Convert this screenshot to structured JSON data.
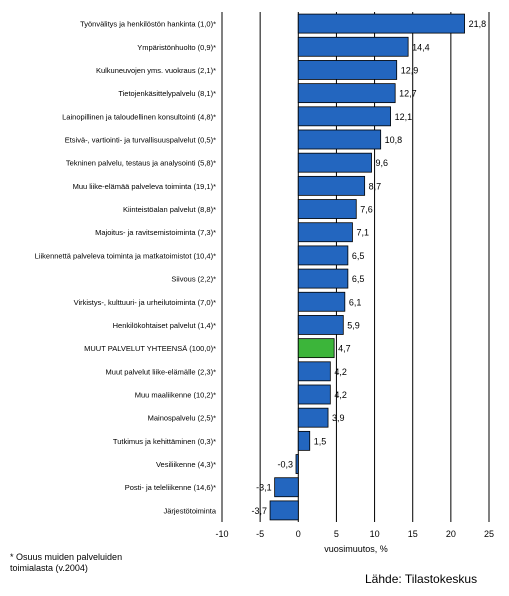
{
  "chart_data": {
    "type": "bar",
    "orientation": "horizontal",
    "categories": [
      "Työnvälitys ja henkilöstön hankinta (1,0)*",
      "Ympäristönhuolto (0,9)*",
      "Kulkuneuvojen yms. vuokraus (2,1)*",
      "Tietojenkäsittelypalvelu (8,1)*",
      "Lainopillinen ja taloudellinen konsultointi (4,8)*",
      "Etsivä-, vartiointi- ja turvallisuuspalvelut (0,5)*",
      "Tekninen palvelu, testaus ja analysointi (5,8)*",
      "Muu liike-elämää palveleva toiminta (19,1)*",
      "Kiinteistöalan palvelut (8,8)*",
      "Majoitus- ja ravitsemistoiminta (7,3)*",
      "Liikennettä palveleva toiminta ja matkatoimistot (10,4)*",
      "Siivous (2,2)*",
      "Virkistys-, kulttuuri- ja urheilutoiminta (7,0)*",
      "Henkilökohtaiset palvelut (1,4)*",
      "MUUT PALVELUT YHTEENSÄ (100,0)*",
      "Muut palvelut liike-elämälle (2,3)*",
      "Muu maaliikenne (10,2)*",
      "Mainospalvelu (2,5)*",
      "Tutkimus ja kehittäminen (0,3)*",
      "Vesiliikenne (4,3)*",
      "Posti- ja teleliikenne (14,6)*",
      "Järjestötoiminta"
    ],
    "values": [
      21.8,
      14.4,
      12.9,
      12.7,
      12.1,
      10.8,
      9.6,
      8.7,
      7.6,
      7.1,
      6.5,
      6.5,
      6.1,
      5.9,
      4.7,
      4.2,
      4.2,
      3.9,
      1.5,
      -0.3,
      -3.1,
      -3.7
    ],
    "value_labels": [
      "21,8",
      "14,4",
      "12,9",
      "12,7",
      "12,1",
      "10,8",
      "9,6",
      "8,7",
      "7,6",
      "7,1",
      "6,5",
      "6,5",
      "6,1",
      "5,9",
      "4,7",
      "4,2",
      "4,2",
      "3,9",
      "1,5",
      "-0,3",
      "-3,1",
      "-3,7"
    ],
    "highlight_index": 14,
    "xlim": [
      -10,
      25
    ],
    "xticks": [
      -10,
      -5,
      0,
      5,
      10,
      15,
      20,
      25
    ],
    "xlabel": "vuosimuutos, %",
    "grid": "vertical",
    "colors": {
      "bar": "#2366bf",
      "highlight": "#3cb53a",
      "bar_edge": "#000000",
      "grid": "#000000"
    }
  },
  "footnote": [
    "* Osuus muiden palveluiden",
    "toimialasta (v.2004)"
  ],
  "source": "Lähde: Tilastokeskus"
}
